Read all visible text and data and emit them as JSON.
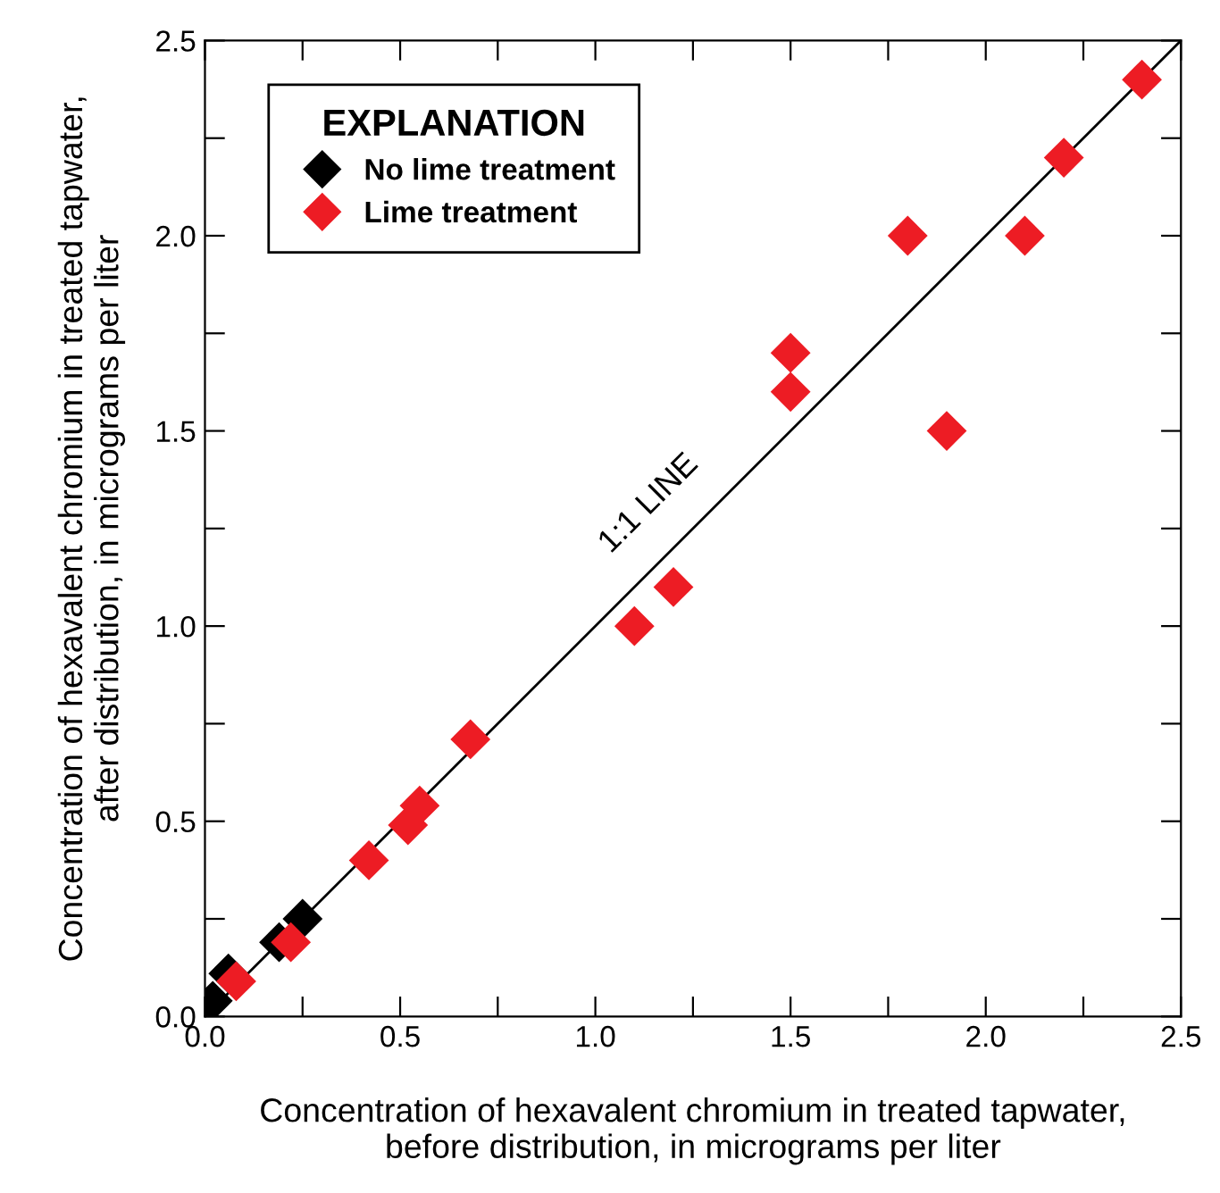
{
  "chart_data": {
    "type": "scatter",
    "xlabel": "Concentration of hexavalent chromium in treated tapwater,\nbefore distribution, in micrograms per liter",
    "ylabel": "Concentration of hexavalent chromium in treated tapwater,\nafter distribution, in micrograms per liter",
    "legend_title": "EXPLANATION",
    "legend": "top left",
    "marker": "diamond",
    "series": [
      {
        "name": "No lime treatment",
        "color": "#000000",
        "x": [
          0.25,
          0.19,
          0.06,
          0.02
        ],
        "values": [
          0.25,
          0.19,
          0.11,
          0.04
        ]
      },
      {
        "name": "Lime treatment",
        "color": "#ed1c24",
        "x": [
          2.4,
          2.2,
          2.1,
          1.8,
          1.5,
          1.5,
          1.9,
          1.2,
          1.1,
          0.68,
          0.55,
          0.52,
          0.42,
          0.22,
          0.08
        ],
        "values": [
          2.4,
          2.2,
          2.0,
          2.0,
          1.7,
          1.6,
          1.5,
          1.1,
          1.0,
          0.71,
          0.54,
          0.49,
          0.4,
          0.19,
          0.09
        ]
      },
      {
        "type": "line",
        "marker": "none",
        "color": "#000000",
        "x": [
          0,
          2.5
        ],
        "values": [
          0,
          2.5
        ]
      }
    ],
    "annotations": [
      "1:1 LINE"
    ],
    "xlim": [
      0,
      2.5
    ],
    "ylim": [
      0,
      2.5
    ],
    "xticks": [
      {
        "value": 0,
        "label": "0.0"
      },
      {
        "value": 0.25,
        "label": null
      },
      0.5,
      {
        "value": 0.75,
        "label": null
      },
      {
        "value": 1,
        "label": "1.0"
      },
      {
        "value": 1.25,
        "label": null
      },
      1.5,
      {
        "value": 1.75,
        "label": null
      },
      {
        "value": 2,
        "label": "2.0"
      },
      {
        "value": 2.25,
        "label": null
      },
      2.5
    ],
    "yticks": [
      {
        "value": 0,
        "label": "0.0"
      },
      {
        "value": 0.25,
        "label": null
      },
      0.5,
      {
        "value": 0.75,
        "label": null
      },
      {
        "value": 1,
        "label": "1.0"
      },
      {
        "value": 1.25,
        "label": null
      },
      1.5,
      {
        "value": 1.75,
        "label": null
      },
      {
        "value": 2,
        "label": "2.0"
      },
      {
        "value": 2.25,
        "label": null
      },
      2.5
    ],
    "grid": false
  }
}
